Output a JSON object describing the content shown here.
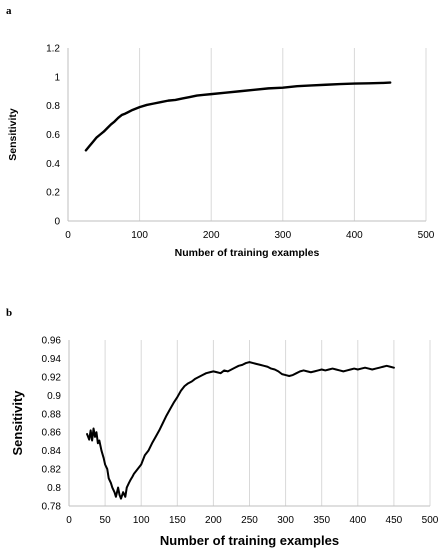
{
  "panels": [
    {
      "label": "a"
    },
    {
      "label": "b"
    }
  ],
  "chart_data": [
    {
      "type": "line",
      "xlabel": "Number of training examples",
      "ylabel": "Sensitivity",
      "xlim": [
        0,
        500
      ],
      "ylim": [
        0,
        1.2
      ],
      "xticks": [
        "0",
        "100",
        "200",
        "300",
        "400",
        "500"
      ],
      "yticks": [
        "0",
        "0.2",
        "0.4",
        "0.6",
        "0.8",
        "1",
        "1.2"
      ],
      "grid": "vertical",
      "series_color": "#000000",
      "series": [
        {
          "x": [
            25,
            30,
            35,
            40,
            45,
            50,
            55,
            60,
            65,
            70,
            75,
            80,
            90,
            100,
            110,
            120,
            130,
            140,
            150,
            160,
            170,
            180,
            190,
            200,
            220,
            240,
            260,
            280,
            300,
            320,
            340,
            360,
            380,
            400,
            420,
            440,
            450
          ],
          "values": [
            0.49,
            0.52,
            0.55,
            0.58,
            0.6,
            0.62,
            0.645,
            0.67,
            0.69,
            0.715,
            0.735,
            0.745,
            0.77,
            0.79,
            0.805,
            0.815,
            0.825,
            0.835,
            0.84,
            0.85,
            0.86,
            0.87,
            0.875,
            0.88,
            0.89,
            0.9,
            0.91,
            0.92,
            0.925,
            0.935,
            0.94,
            0.945,
            0.95,
            0.953,
            0.955,
            0.958,
            0.96
          ]
        }
      ]
    },
    {
      "type": "line",
      "xlabel": "Number of training examples",
      "ylabel": "Sensitivity",
      "xlim": [
        0,
        500
      ],
      "ylim": [
        0.78,
        0.96
      ],
      "xticks": [
        "0",
        "50",
        "100",
        "150",
        "200",
        "250",
        "300",
        "350",
        "400",
        "450",
        "500"
      ],
      "yticks": [
        "0.78",
        "0.8",
        "0.82",
        "0.84",
        "0.86",
        "0.88",
        "0.9",
        "0.92",
        "0.94",
        "0.96"
      ],
      "grid": "vertical",
      "series_color": "#000000",
      "series": [
        {
          "x": [
            25,
            28,
            30,
            32,
            34,
            36,
            38,
            40,
            42,
            45,
            48,
            50,
            53,
            55,
            58,
            60,
            63,
            65,
            68,
            70,
            72,
            75,
            78,
            80,
            83,
            85,
            88,
            90,
            95,
            100,
            105,
            110,
            115,
            120,
            125,
            130,
            135,
            140,
            145,
            150,
            155,
            160,
            165,
            170,
            175,
            180,
            185,
            190,
            195,
            200,
            205,
            210,
            215,
            220,
            225,
            230,
            235,
            240,
            245,
            250,
            255,
            260,
            265,
            270,
            275,
            280,
            285,
            290,
            295,
            300,
            305,
            310,
            315,
            320,
            325,
            330,
            335,
            340,
            345,
            350,
            355,
            360,
            365,
            370,
            375,
            380,
            385,
            390,
            395,
            400,
            405,
            410,
            415,
            420,
            425,
            430,
            435,
            440,
            445,
            450
          ],
          "values": [
            0.858,
            0.852,
            0.862,
            0.851,
            0.864,
            0.855,
            0.86,
            0.848,
            0.851,
            0.84,
            0.832,
            0.825,
            0.82,
            0.81,
            0.805,
            0.8,
            0.795,
            0.79,
            0.8,
            0.792,
            0.788,
            0.795,
            0.79,
            0.8,
            0.805,
            0.808,
            0.812,
            0.815,
            0.82,
            0.825,
            0.835,
            0.84,
            0.848,
            0.855,
            0.862,
            0.87,
            0.878,
            0.885,
            0.892,
            0.898,
            0.905,
            0.91,
            0.913,
            0.915,
            0.918,
            0.92,
            0.922,
            0.924,
            0.925,
            0.926,
            0.925,
            0.924,
            0.927,
            0.926,
            0.928,
            0.93,
            0.932,
            0.933,
            0.935,
            0.936,
            0.935,
            0.934,
            0.933,
            0.932,
            0.931,
            0.929,
            0.928,
            0.926,
            0.923,
            0.922,
            0.921,
            0.922,
            0.924,
            0.926,
            0.927,
            0.926,
            0.925,
            0.926,
            0.927,
            0.928,
            0.927,
            0.928,
            0.929,
            0.928,
            0.927,
            0.926,
            0.927,
            0.928,
            0.929,
            0.928,
            0.929,
            0.93,
            0.929,
            0.928,
            0.929,
            0.93,
            0.931,
            0.932,
            0.931,
            0.93
          ]
        }
      ]
    }
  ]
}
